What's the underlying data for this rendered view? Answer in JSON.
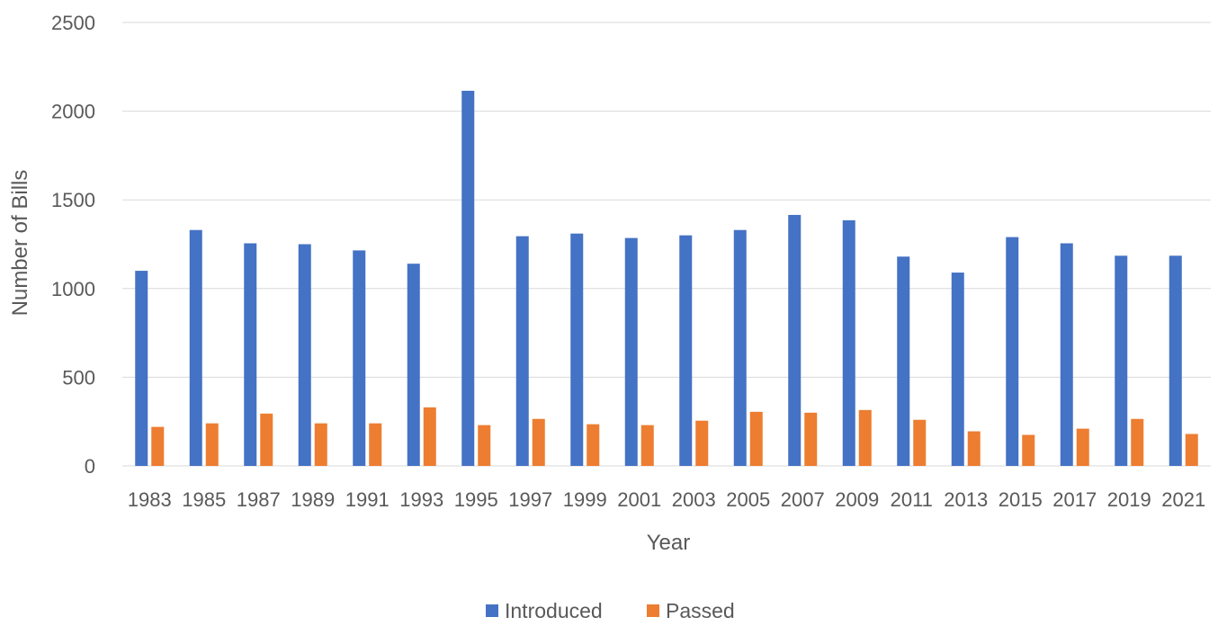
{
  "chart_data": {
    "type": "bar",
    "title": "",
    "xlabel": "Year",
    "ylabel": "Number of Bills",
    "ylim": [
      0,
      2500
    ],
    "yticks": [
      0,
      500,
      1000,
      1500,
      2000,
      2500
    ],
    "grid": true,
    "legend_position": "bottom",
    "categories": [
      "1983",
      "1985",
      "1987",
      "1989",
      "1991",
      "1993",
      "1995",
      "1997",
      "1999",
      "2001",
      "2003",
      "2005",
      "2007",
      "2009",
      "2011",
      "2013",
      "2015",
      "2017",
      "2019",
      "2021"
    ],
    "series": [
      {
        "name": "Introduced",
        "color": "#4472c4",
        "values": [
          1100,
          1330,
          1255,
          1250,
          1215,
          1140,
          2115,
          1295,
          1310,
          1285,
          1300,
          1330,
          1415,
          1385,
          1180,
          1090,
          1290,
          1255,
          1185,
          1185
        ]
      },
      {
        "name": "Passed",
        "color": "#ed7d31",
        "values": [
          220,
          240,
          295,
          240,
          240,
          330,
          230,
          265,
          235,
          230,
          255,
          305,
          300,
          315,
          260,
          195,
          175,
          210,
          265,
          180
        ]
      }
    ]
  }
}
